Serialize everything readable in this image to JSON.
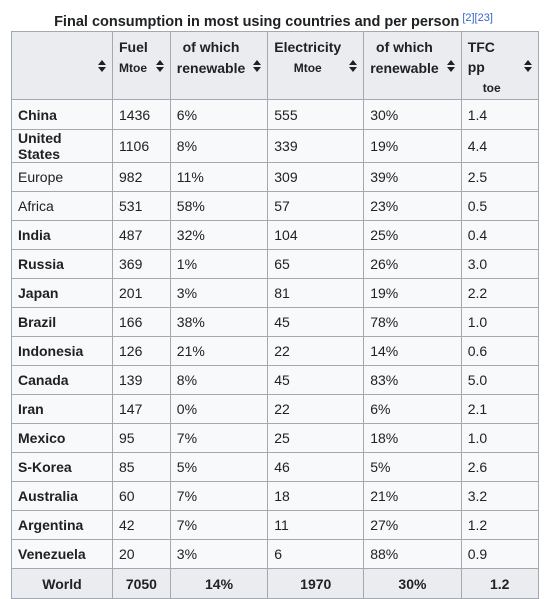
{
  "caption": {
    "title": "Final consumption in most using countries and per person",
    "refs": [
      "[2]",
      "[23]"
    ]
  },
  "columns": [
    {
      "main": "",
      "sub": ""
    },
    {
      "main": "Fuel",
      "sub": "Mtoe"
    },
    {
      "main": "of which",
      "sub": "renewable"
    },
    {
      "main": "Electricity",
      "sub": "Mtoe"
    },
    {
      "main": "of which",
      "sub": "renewable"
    },
    {
      "main": "TFC pp",
      "sub": "toe"
    }
  ],
  "rows": [
    {
      "country": "China",
      "bold": true,
      "fuel": "1436",
      "fuel_renewable": "6%",
      "electricity": "555",
      "electricity_renewable": "30%",
      "tfc_pp": "1.4"
    },
    {
      "country": "United States",
      "bold": true,
      "fuel": "1106",
      "fuel_renewable": "8%",
      "electricity": "339",
      "electricity_renewable": "19%",
      "tfc_pp": "4.4"
    },
    {
      "country": "Europe",
      "bold": false,
      "fuel": "982",
      "fuel_renewable": "11%",
      "electricity": "309",
      "electricity_renewable": "39%",
      "tfc_pp": "2.5"
    },
    {
      "country": "Africa",
      "bold": false,
      "fuel": "531",
      "fuel_renewable": "58%",
      "electricity": "57",
      "electricity_renewable": "23%",
      "tfc_pp": "0.5"
    },
    {
      "country": "India",
      "bold": true,
      "fuel": "487",
      "fuel_renewable": "32%",
      "electricity": "104",
      "electricity_renewable": "25%",
      "tfc_pp": "0.4"
    },
    {
      "country": "Russia",
      "bold": true,
      "fuel": "369",
      "fuel_renewable": "1%",
      "electricity": "65",
      "electricity_renewable": "26%",
      "tfc_pp": "3.0"
    },
    {
      "country": "Japan",
      "bold": true,
      "fuel": "201",
      "fuel_renewable": "3%",
      "electricity": "81",
      "electricity_renewable": "19%",
      "tfc_pp": "2.2"
    },
    {
      "country": "Brazil",
      "bold": true,
      "fuel": "166",
      "fuel_renewable": "38%",
      "electricity": "45",
      "electricity_renewable": "78%",
      "tfc_pp": "1.0"
    },
    {
      "country": "Indonesia",
      "bold": true,
      "fuel": "126",
      "fuel_renewable": "21%",
      "electricity": "22",
      "electricity_renewable": "14%",
      "tfc_pp": "0.6"
    },
    {
      "country": "Canada",
      "bold": true,
      "fuel": "139",
      "fuel_renewable": "8%",
      "electricity": "45",
      "electricity_renewable": "83%",
      "tfc_pp": "5.0"
    },
    {
      "country": "Iran",
      "bold": true,
      "fuel": "147",
      "fuel_renewable": "0%",
      "electricity": "22",
      "electricity_renewable": "6%",
      "tfc_pp": "2.1"
    },
    {
      "country": "Mexico",
      "bold": true,
      "fuel": "95",
      "fuel_renewable": "7%",
      "electricity": "25",
      "electricity_renewable": "18%",
      "tfc_pp": "1.0"
    },
    {
      "country": "S-Korea",
      "bold": true,
      "fuel": "85",
      "fuel_renewable": "5%",
      "electricity": "46",
      "electricity_renewable": "5%",
      "tfc_pp": "2.6"
    },
    {
      "country": "Australia",
      "bold": true,
      "fuel": "60",
      "fuel_renewable": "7%",
      "electricity": "18",
      "electricity_renewable": "21%",
      "tfc_pp": "3.2"
    },
    {
      "country": "Argentina",
      "bold": true,
      "fuel": "42",
      "fuel_renewable": "7%",
      "electricity": "11",
      "electricity_renewable": "27%",
      "tfc_pp": "1.2"
    },
    {
      "country": "Venezuela",
      "bold": true,
      "fuel": "20",
      "fuel_renewable": "3%",
      "electricity": "6",
      "electricity_renewable": "88%",
      "tfc_pp": "0.9"
    }
  ],
  "footer": {
    "label": "World",
    "fuel": "7050",
    "fuel_renewable": "14%",
    "electricity": "1970",
    "electricity_renewable": "30%",
    "tfc_pp": "1.2"
  }
}
